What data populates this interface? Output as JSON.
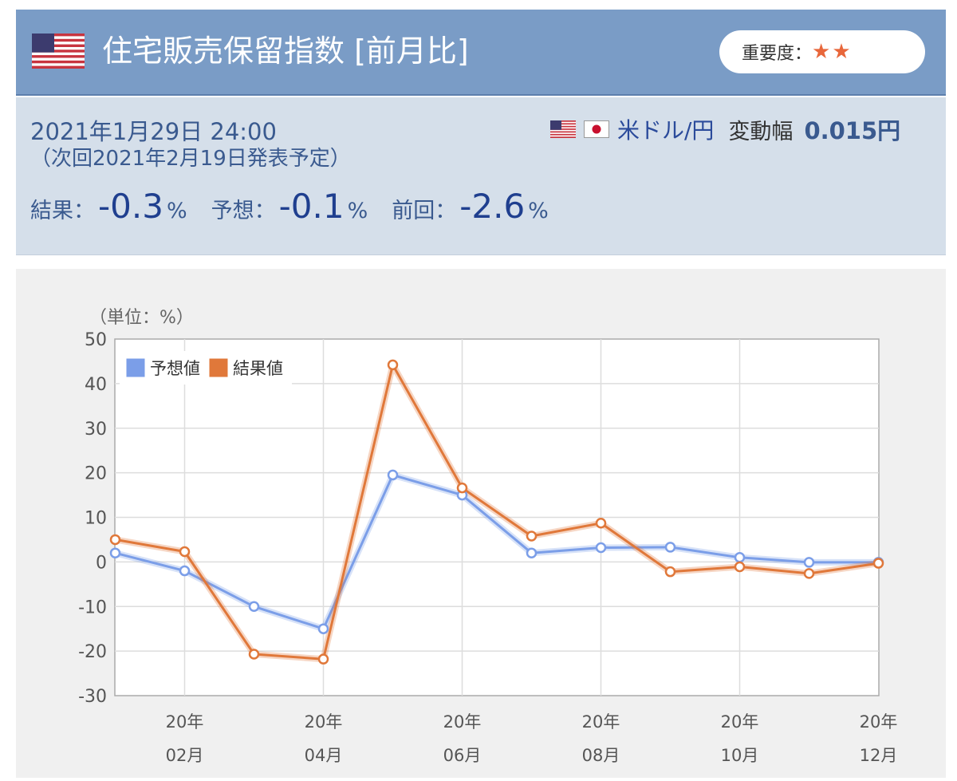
{
  "header": {
    "title": "住宅販売保留指数 [前月比]",
    "importance_label": "重要度：",
    "importance_stars": "★★",
    "accent": "#7a9cc6"
  },
  "info": {
    "datetime": "2021年1月29日 24:00",
    "next_release": "（次回2021年2月19日発表予定）",
    "pair": "米ドル/円",
    "volatility_label": "変動幅",
    "volatility_value": "0.015円",
    "result_label": "結果：",
    "result_value": "-0.3",
    "forecast_label": "予想：",
    "forecast_value": "-0.1",
    "previous_label": "前回：",
    "previous_value": "-2.6",
    "unit": "%"
  },
  "chart_data": {
    "type": "line",
    "unit_label": "（単位：%）",
    "ylim": [
      -30,
      50
    ],
    "y_ticks": [
      50,
      40,
      30,
      20,
      10,
      0,
      -10,
      -20,
      -30
    ],
    "x_tick_labels": [
      {
        "index": 1,
        "year": "20年",
        "month": "02月"
      },
      {
        "index": 3,
        "year": "20年",
        "month": "04月"
      },
      {
        "index": 5,
        "year": "20年",
        "month": "06月"
      },
      {
        "index": 7,
        "year": "20年",
        "month": "08月"
      },
      {
        "index": 9,
        "year": "20年",
        "month": "10月"
      },
      {
        "index": 11,
        "year": "20年",
        "month": "12月"
      }
    ],
    "legend_position": "top-left",
    "grid": true,
    "series": [
      {
        "name": "予想値",
        "color": "#7b9ee8",
        "values": [
          2,
          -2,
          -10,
          -15,
          19.5,
          15,
          2,
          3.2,
          3.3,
          1,
          -0.1,
          -0.1
        ]
      },
      {
        "name": "結果値",
        "color": "#e0783a",
        "values": [
          5,
          2.3,
          -20.7,
          -21.8,
          44.2,
          16.6,
          5.8,
          8.7,
          -2.2,
          -1.1,
          -2.6,
          -0.3
        ]
      }
    ]
  }
}
